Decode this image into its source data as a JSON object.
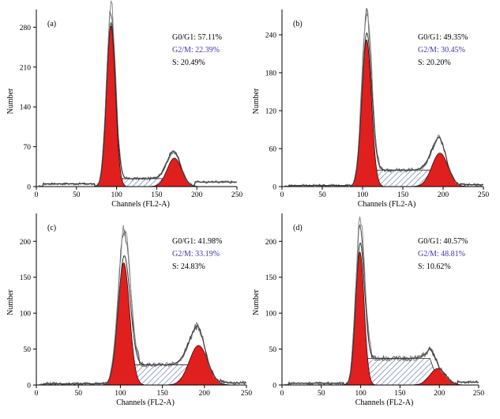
{
  "colors": {
    "peak_fill": "#e01f1f",
    "s_phase_hatch": "#6b7fb0",
    "trace": "#555555",
    "g2m_text": "#3b3bb0"
  },
  "chart_data": [
    {
      "type": "area",
      "panel": "(a)",
      "xlabel": "Channels (FL2-A)",
      "ylabel": "Number",
      "xlim": [
        0,
        250
      ],
      "ylim": [
        0,
        300
      ],
      "xticks": [
        0,
        50,
        100,
        150,
        200,
        250
      ],
      "yticks": [
        0,
        70,
        140,
        210,
        280
      ],
      "stats": {
        "g0g1": "G0/G1: 57.11%",
        "g2m": "G2/M: 22.39%",
        "s": "S: 20.49%"
      },
      "peaks": [
        {
          "name": "G0/G1",
          "center": 93,
          "height": 282,
          "sigma": 5.5
        },
        {
          "name": "G2/M",
          "center": 172,
          "height": 50,
          "sigma": 9
        }
      ],
      "s_phase": {
        "x_start": 100,
        "x_end": 170,
        "height": 14
      },
      "raw_max": 302,
      "tail_level": 8
    },
    {
      "type": "area",
      "panel": "(b)",
      "xlabel": "Channels (FL2-A)",
      "ylabel": "Number",
      "xlim": [
        0,
        250
      ],
      "ylim": [
        0,
        270
      ],
      "xticks": [
        0,
        50,
        100,
        150,
        200,
        250
      ],
      "yticks": [
        0,
        60,
        120,
        180,
        240
      ],
      "stats": {
        "g0g1": "G0/G1: 49.35%",
        "g2m": "G2/M: 30.45%",
        "s": "S: 20.20%"
      },
      "peaks": [
        {
          "name": "G0/G1",
          "center": 105,
          "height": 232,
          "sigma": 6
        },
        {
          "name": "G2/M",
          "center": 196,
          "height": 53,
          "sigma": 10
        }
      ],
      "s_phase": {
        "x_start": 112,
        "x_end": 195,
        "height": 26
      },
      "raw_max": 262,
      "tail_level": 3
    },
    {
      "type": "area",
      "panel": "(c)",
      "xlabel": "Channels (FL2-A)",
      "ylabel": "Number",
      "xlim": [
        0,
        250
      ],
      "ylim": [
        0,
        230
      ],
      "xticks": [
        0,
        50,
        100,
        150,
        200,
        250
      ],
      "yticks": [
        0,
        50,
        100,
        150,
        200
      ],
      "stats": {
        "g0g1": "G0/G1: 41.98%",
        "g2m": "G2/M: 33.19%",
        "s": "S: 24.83%"
      },
      "peaks": [
        {
          "name": "G0/G1",
          "center": 104,
          "height": 170,
          "sigma": 7
        },
        {
          "name": "G2/M",
          "center": 193,
          "height": 55,
          "sigma": 11
        }
      ],
      "s_phase": {
        "x_start": 112,
        "x_end": 192,
        "height": 28
      },
      "raw_max": 201,
      "tail_level": 3
    },
    {
      "type": "area",
      "panel": "(d)",
      "xlabel": "Channels (FL2-A)",
      "ylabel": "Number",
      "xlim": [
        0,
        250
      ],
      "ylim": [
        0,
        230
      ],
      "xticks": [
        0,
        50,
        100,
        150,
        200,
        250
      ],
      "yticks": [
        0,
        50,
        100,
        150,
        200
      ],
      "stats": {
        "g0g1": "G0/G1: 40.57%",
        "g2m": "G2/M: 48.81%",
        "s": "S: 10.62%"
      },
      "peaks": [
        {
          "name": "G0/G1",
          "center": 99,
          "height": 185,
          "sigma": 5.5
        },
        {
          "name": "G2/M",
          "center": 198,
          "height": 23,
          "sigma": 10
        }
      ],
      "s_phase": {
        "x_start": 107,
        "x_end": 188,
        "height": 37
      },
      "raw_max": 212,
      "tail_level": 4
    }
  ]
}
